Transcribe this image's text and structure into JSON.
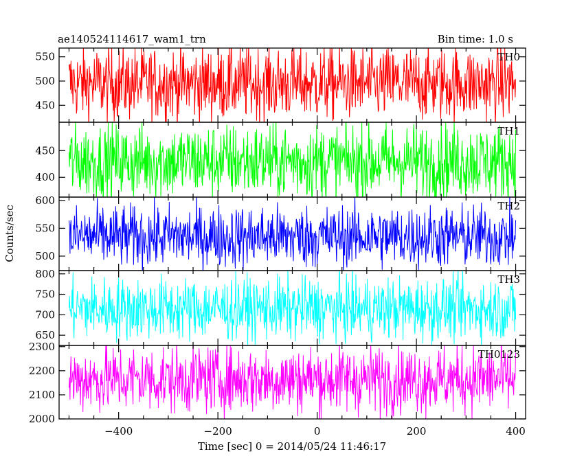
{
  "header": {
    "title": "ae140524114617_wam1_trn",
    "bin_time": "Bin time: 1.0 s"
  },
  "axes": {
    "ylabel": "Counts/sec",
    "xlabel": "Time [sec] 0 = 2014/05/24 11:46:17"
  },
  "chart_data": [
    {
      "type": "line",
      "series": [
        {
          "name": "TH0",
          "mean": 495,
          "std": 38,
          "color": "#ff0000"
        }
      ],
      "x_range": [
        -500,
        400
      ],
      "xlim": [
        -520,
        420
      ],
      "ylim": [
        415,
        568
      ],
      "yticks": [
        450,
        500,
        550
      ],
      "ytick_labels": [
        "450",
        "500",
        "550"
      ],
      "label": "TH0"
    },
    {
      "type": "line",
      "series": [
        {
          "name": "TH1",
          "mean": 430,
          "std": 35,
          "color": "#00ff00"
        }
      ],
      "x_range": [
        -500,
        400
      ],
      "xlim": [
        -520,
        420
      ],
      "ylim": [
        363,
        503
      ],
      "yticks": [
        400,
        450
      ],
      "ytick_labels": [
        "400",
        "450"
      ],
      "label": "TH1"
    },
    {
      "type": "line",
      "series": [
        {
          "name": "TH2",
          "mean": 535,
          "std": 28,
          "color": "#0000ff"
        }
      ],
      "x_range": [
        -500,
        400
      ],
      "xlim": [
        -520,
        420
      ],
      "ylim": [
        474,
        606
      ],
      "yticks": [
        500,
        550,
        600
      ],
      "ytick_labels": [
        "500",
        "550",
        "600"
      ],
      "label": "TH2"
    },
    {
      "type": "line",
      "series": [
        {
          "name": "TH3",
          "mean": 715,
          "std": 38,
          "color": "#00ffff"
        }
      ],
      "x_range": [
        -500,
        400
      ],
      "xlim": [
        -520,
        420
      ],
      "ylim": [
        625,
        808
      ],
      "yticks": [
        650,
        700,
        750,
        800
      ],
      "ytick_labels": [
        "650",
        "700",
        "750",
        "800"
      ],
      "label": "TH3"
    },
    {
      "type": "line",
      "series": [
        {
          "name": "TH0123",
          "mean": 2165,
          "std": 70,
          "color": "#ff00ff"
        }
      ],
      "x_range": [
        -500,
        400
      ],
      "xlim": [
        -520,
        420
      ],
      "ylim": [
        2000,
        2305
      ],
      "yticks": [
        2000,
        2100,
        2200,
        2300
      ],
      "ytick_labels": [
        "2000",
        "2100",
        "2200",
        "2300"
      ],
      "label": "TH0123"
    }
  ],
  "x_axis": {
    "ticks": [
      -400,
      -200,
      0,
      200,
      400
    ],
    "tick_labels": [
      "−400",
      "−200",
      "0",
      "200",
      "400"
    ]
  }
}
